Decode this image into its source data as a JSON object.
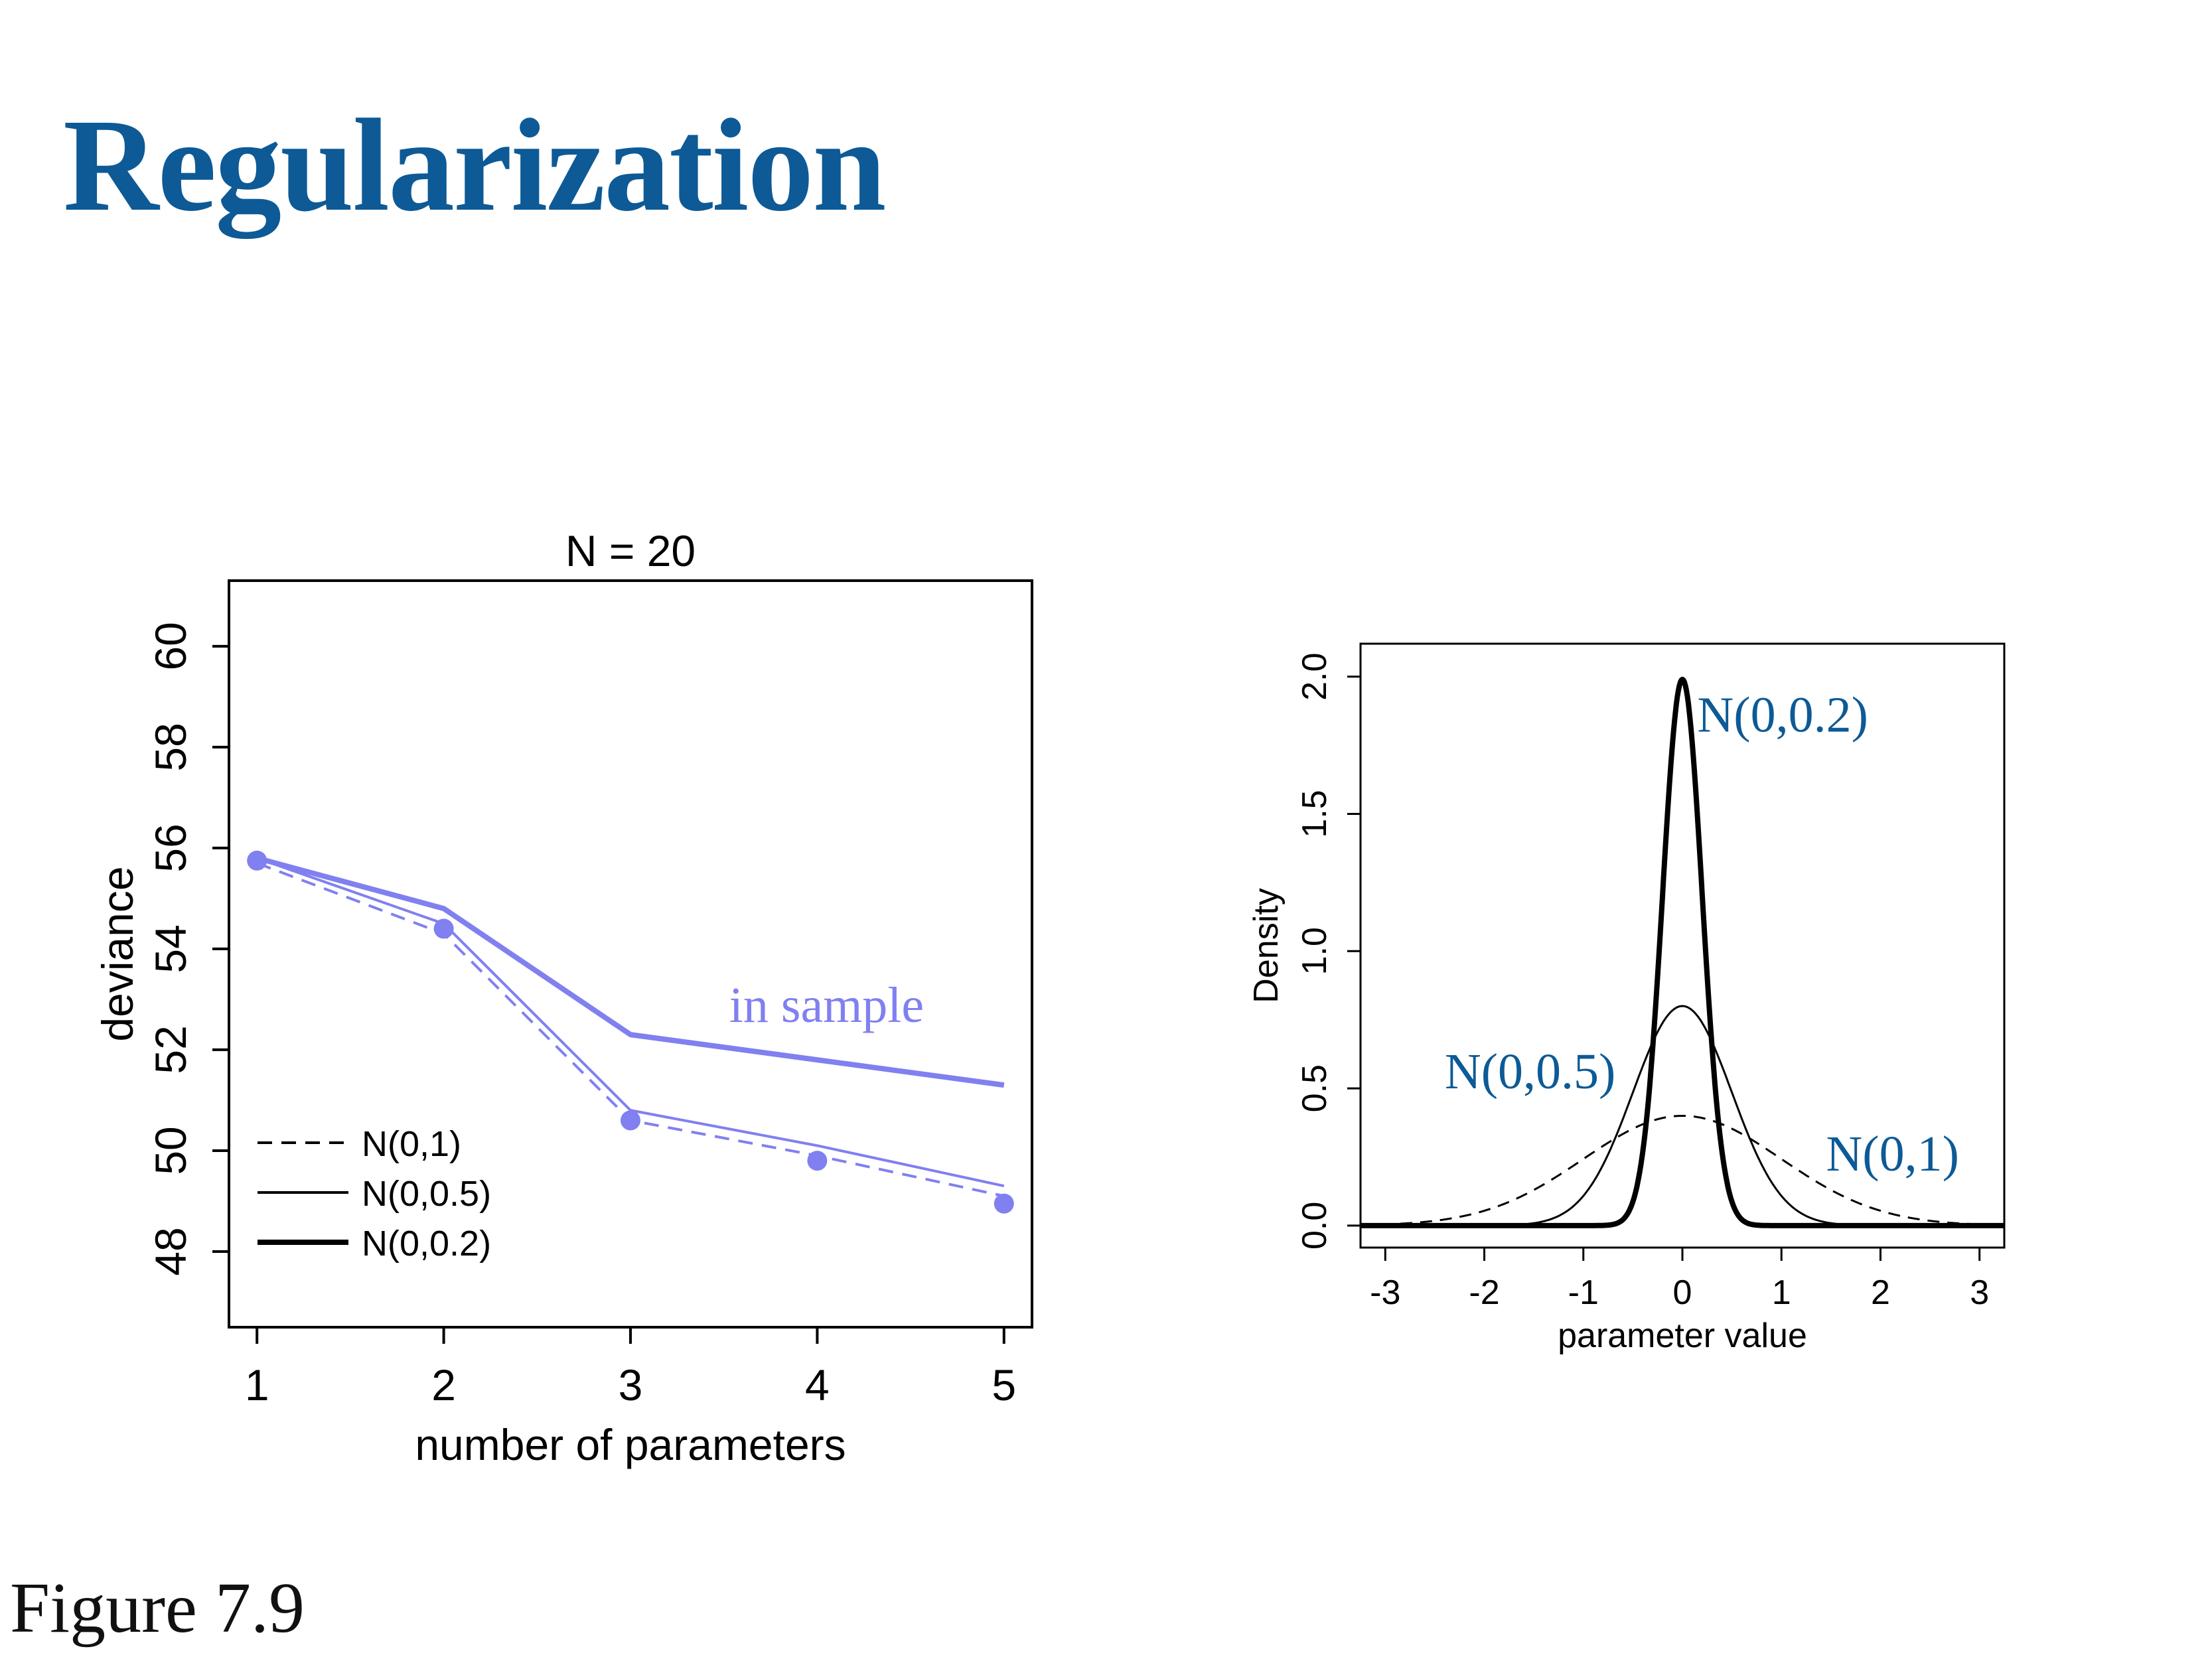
{
  "slide": {
    "title": "Regularization",
    "caption": "Figure 7.9"
  },
  "colors": {
    "title": "#0d5a96",
    "series": "#8080f0",
    "curve": "#000000",
    "curve_label": "#0d5a96"
  },
  "chart_data": [
    {
      "type": "line",
      "title": "N = 20",
      "xlabel": "number of parameters",
      "ylabel": "deviance",
      "xlim": [
        0.85,
        5.15
      ],
      "ylim": [
        46.5,
        61.3
      ],
      "x": [
        1,
        2,
        3,
        4,
        5
      ],
      "xticks": [
        "1",
        "2",
        "3",
        "4",
        "5"
      ],
      "yticks": [
        "48",
        "50",
        "52",
        "54",
        "56",
        "58",
        "60"
      ],
      "series": [
        {
          "key": "thick",
          "values": [
            55.8,
            54.8,
            52.3,
            51.8,
            51.3
          ]
        },
        {
          "key": "thin",
          "values": [
            55.8,
            54.5,
            50.8,
            50.1,
            49.3
          ]
        },
        {
          "key": "dashed",
          "values": [
            55.7,
            54.3,
            50.6,
            49.9,
            49.1
          ]
        },
        {
          "key": "points",
          "values": [
            55.75,
            54.4,
            50.6,
            49.8,
            48.95
          ]
        }
      ],
      "annotation": {
        "text": "in sample",
        "x": 4.05,
        "y": 52.55
      },
      "legend": {
        "placement": "bottom-left",
        "entries": [
          {
            "label": "N(0,1)",
            "style": "dashed"
          },
          {
            "label": "N(0,0.5)",
            "style": "thin"
          },
          {
            "label": "N(0,0.2)",
            "style": "thick"
          }
        ]
      },
      "grid": false
    },
    {
      "type": "line",
      "xlabel": "parameter value",
      "ylabel": "Density",
      "xlim": [
        -3.25,
        3.25
      ],
      "ylim": [
        -0.08,
        2.12
      ],
      "xticks": [
        "-3",
        "-2",
        "-1",
        "0",
        "1",
        "2",
        "3"
      ],
      "yticks": [
        "0.0",
        "0.5",
        "1.0",
        "1.5",
        "2.0"
      ],
      "series": [
        {
          "name": "N(0,1)",
          "distribution": "normal",
          "mean": 0,
          "sd": 1,
          "style": "dashed",
          "peak": 0.4
        },
        {
          "name": "N(0,0.5)",
          "distribution": "normal",
          "mean": 0,
          "sd": 0.5,
          "style": "thin",
          "peak": 0.8
        },
        {
          "name": "N(0,0.2)",
          "distribution": "normal",
          "mean": 0,
          "sd": 0.2,
          "style": "thick",
          "peak": 1.99
        }
      ],
      "curve_labels": [
        {
          "text": "N(0,0.2)",
          "x": 0.15,
          "y": 1.8
        },
        {
          "text": "N(0,0.5)",
          "x": -2.4,
          "y": 0.5
        },
        {
          "text": "N(0,1)",
          "x": 1.45,
          "y": 0.2
        }
      ],
      "grid": false
    }
  ]
}
